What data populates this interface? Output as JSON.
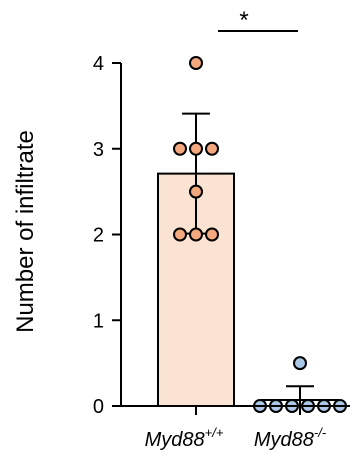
{
  "chart_data": {
    "type": "bar",
    "title": "",
    "xlabel": "",
    "ylabel": "Number of infiltrate",
    "ylim": [
      0,
      4
    ],
    "yticks": [
      0,
      1,
      2,
      3,
      4
    ],
    "grid": false,
    "categories": [
      {
        "base": "Myd88",
        "sup": "+/+"
      },
      {
        "base": "Myd88",
        "sup": "-/-"
      }
    ],
    "values": [
      2.71,
      0.07
    ],
    "errors": [
      0.7,
      0.16
    ],
    "points": [
      [
        4,
        3,
        3,
        3,
        2.5,
        2,
        2,
        2
      ],
      [
        0.5,
        0,
        0,
        0,
        0,
        0,
        0
      ]
    ],
    "significance": {
      "between": [
        0,
        1
      ],
      "label": "*"
    },
    "colors": {
      "bar_fill": [
        "#FBE3D3",
        "#ffffff"
      ],
      "point_fill": [
        "#F4A87E",
        "#A9C8E6"
      ],
      "stroke": "#000000"
    }
  }
}
